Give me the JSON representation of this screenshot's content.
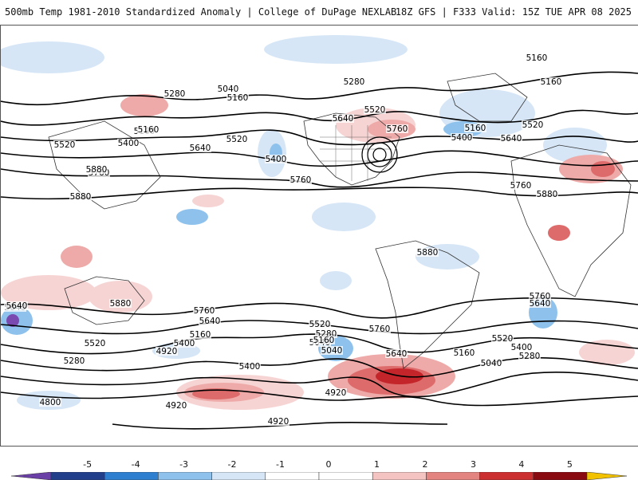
{
  "header": {
    "left_title": "500mb Temp 1981-2010 Standardized Anomaly | College of DuPage NEXLAB",
    "right_title": "18Z GFS | F333 Valid: 15Z TUE APR 08 2025"
  },
  "map": {
    "contour_labels": [
      "5160",
      "5160",
      "5280",
      "5040",
      "5160",
      "5280",
      "5520",
      "5640",
      "5760",
      "5160",
      "5520",
      "5160",
      "5400",
      "5640",
      "5520",
      "5400",
      "5640",
      "5520",
      "5400",
      "5160",
      "5760",
      "5880",
      "5760",
      "5880",
      "5760",
      "5880",
      "5880",
      "5880",
      "5640",
      "5760",
      "5640",
      "5520",
      "5160",
      "5400",
      "5040",
      "4920",
      "5280",
      "5400",
      "4800",
      "4920",
      "4920",
      "5520",
      "5280",
      "5160",
      "5040",
      "5760",
      "5640",
      "4920",
      "5760",
      "5640",
      "5520",
      "5400",
      "5280",
      "5160",
      "5040",
      "5640"
    ],
    "anomaly_colors": {
      "neg5": "#7a4ab0",
      "neg4": "#1f3f8f",
      "neg3": "#3b8fd6",
      "neg2": "#8ec2ec",
      "neg1": "#d6e6f6",
      "zero": "#ffffff",
      "pos1": "#f7d4d4",
      "pos2": "#eeaaa8",
      "pos3": "#de6b6b",
      "pos4": "#c4252a",
      "pos5": "#8a0a12",
      "pos_extreme": "#f2c200"
    }
  },
  "colorbar": {
    "ticks": [
      "-5",
      "-4",
      "-3",
      "-2",
      "-1",
      "0",
      "1",
      "2",
      "3",
      "4",
      "5"
    ],
    "colors": [
      "#6a3fa6",
      "#223f8c",
      "#2f7fd0",
      "#8ec2ec",
      "#d6e6f6",
      "#ffffff",
      "#ffffff",
      "#f3c4c2",
      "#e48480",
      "#cc2f30",
      "#8a0a12",
      "#f2c200"
    ]
  }
}
